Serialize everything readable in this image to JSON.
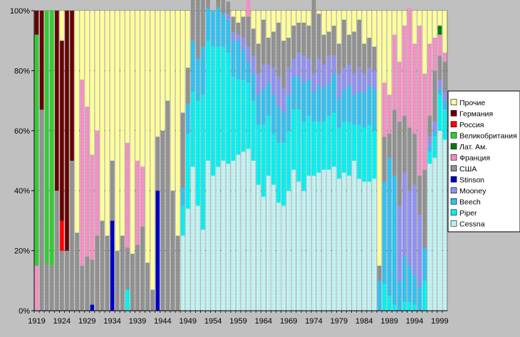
{
  "chart_data": {
    "type": "bar",
    "stacked": "percent",
    "title": "",
    "xlabel": "",
    "ylabel": "",
    "ylim": [
      0,
      100
    ],
    "y_ticks": [
      "0%",
      "20%",
      "40%",
      "60%",
      "80%",
      "100%"
    ],
    "x_tick_labels": [
      "1919",
      "1924",
      "1929",
      "1934",
      "1939",
      "1944",
      "1949",
      "1954",
      "1959",
      "1964",
      "1969",
      "1974",
      "1979",
      "1984",
      "1989",
      "1994",
      "1999"
    ],
    "grid": true,
    "legend_position": "right",
    "years": [
      1919,
      1920,
      1921,
      1922,
      1923,
      1924,
      1925,
      1926,
      1927,
      1928,
      1929,
      1930,
      1931,
      1932,
      1933,
      1934,
      1935,
      1936,
      1937,
      1938,
      1939,
      1940,
      1941,
      1942,
      1943,
      1944,
      1945,
      1946,
      1947,
      1948,
      1949,
      1950,
      1951,
      1952,
      1953,
      1954,
      1955,
      1956,
      1957,
      1958,
      1959,
      1960,
      1961,
      1962,
      1963,
      1964,
      1965,
      1966,
      1967,
      1968,
      1969,
      1970,
      1971,
      1972,
      1973,
      1974,
      1975,
      1976,
      1977,
      1978,
      1979,
      1980,
      1981,
      1982,
      1983,
      1984,
      1985,
      1986,
      1987,
      1988,
      1989,
      1990,
      1991,
      1992,
      1993,
      1994,
      1995,
      1996,
      1997,
      1998,
      1999,
      2000
    ],
    "series": [
      {
        "name": "Cessna",
        "color": "#ccffff",
        "pattern": "dots",
        "values": [
          0,
          0,
          0,
          0,
          0,
          0,
          0,
          0,
          0,
          0,
          0,
          0,
          0,
          0,
          0,
          0,
          0,
          0,
          0,
          0,
          0,
          0,
          0,
          0,
          0,
          0,
          0,
          0,
          0,
          25,
          34,
          48,
          35,
          27,
          50,
          45,
          48,
          50,
          49,
          50,
          52,
          53,
          54,
          50,
          42,
          38,
          45,
          42,
          36,
          35,
          40,
          47,
          43,
          40,
          45,
          45,
          46,
          47,
          47,
          48,
          44,
          46,
          45,
          50,
          44,
          43,
          43,
          44,
          0,
          0,
          0,
          0,
          0,
          0,
          0,
          0,
          0,
          0,
          49,
          51,
          60,
          57
        ]
      },
      {
        "name": "Piper",
        "color": "#00ffff",
        "pattern": "dots",
        "values": [
          0,
          0,
          0,
          0,
          0,
          0,
          0,
          0,
          0,
          0,
          0,
          0,
          0,
          0,
          0,
          0,
          0,
          0,
          7,
          0,
          0,
          0,
          0,
          0,
          0,
          0,
          0,
          0,
          0,
          10,
          25,
          25,
          35,
          45,
          40,
          43,
          40,
          38,
          37,
          28,
          25,
          24,
          22,
          20,
          20,
          24,
          20,
          17,
          20,
          21,
          20,
          20,
          24,
          23,
          20,
          18,
          17,
          16,
          18,
          18,
          17,
          17,
          18,
          12,
          18,
          18,
          19,
          16,
          0,
          9,
          5,
          2,
          0,
          3,
          3,
          2,
          0,
          10,
          4,
          7,
          12,
          10
        ]
      },
      {
        "name": "Beech",
        "color": "#33ccff",
        "pattern": "dots",
        "values": [
          0,
          0,
          0,
          0,
          0,
          0,
          0,
          0,
          0,
          0,
          0,
          0,
          0,
          0,
          0,
          0,
          0,
          0,
          0,
          0,
          0,
          0,
          0,
          0,
          0,
          0,
          0,
          0,
          0,
          6,
          10,
          17,
          14,
          16,
          11,
          12,
          13,
          11,
          11,
          12,
          13,
          10,
          7,
          9,
          10,
          12,
          11,
          13,
          12,
          10,
          12,
          11,
          11,
          13,
          12,
          10,
          12,
          11,
          11,
          13,
          10,
          11,
          12,
          10,
          11,
          12,
          13,
          14,
          10,
          34,
          46,
          43,
          10,
          15,
          12,
          10,
          8,
          11,
          2,
          2,
          2,
          3
        ]
      },
      {
        "name": "Mooney",
        "color": "#9999ff",
        "pattern": "dots",
        "values": [
          0,
          0,
          0,
          0,
          0,
          0,
          0,
          0,
          0,
          0,
          0,
          0,
          0,
          0,
          0,
          0,
          0,
          0,
          0,
          0,
          0,
          0,
          0,
          0,
          0,
          0,
          0,
          0,
          0,
          0,
          0,
          0,
          0,
          0,
          0,
          0,
          0,
          0,
          2,
          3,
          2,
          4,
          5,
          6,
          7,
          8,
          6,
          9,
          10,
          8,
          9,
          6,
          8,
          9,
          7,
          6,
          9,
          8,
          9,
          6,
          8,
          7,
          7,
          7,
          8,
          6,
          6,
          6,
          0,
          0,
          0,
          0,
          25,
          28,
          25,
          30,
          24,
          0,
          3,
          3,
          3,
          3
        ]
      },
      {
        "name": "Stinson",
        "color": "#0000cc",
        "pattern": "dots",
        "values": [
          0,
          0,
          0,
          0,
          0,
          0,
          0,
          0,
          0,
          0,
          0,
          2,
          0,
          0,
          0,
          30,
          0,
          0,
          0,
          0,
          0,
          0,
          0,
          0,
          40,
          0,
          0,
          0,
          0,
          0,
          0,
          0,
          0,
          0,
          0,
          0,
          0,
          0,
          0,
          0,
          0,
          0,
          0,
          0,
          0,
          0,
          0,
          0,
          0,
          0,
          0,
          0,
          0,
          0,
          0,
          0,
          0,
          0,
          0,
          0,
          0,
          0,
          0,
          0,
          0,
          0,
          0,
          0,
          0,
          0,
          0,
          0,
          0,
          0,
          0,
          0,
          0,
          0,
          0,
          0,
          0,
          0
        ]
      },
      {
        "name": "США",
        "color": "#999999",
        "pattern": "dots",
        "values": [
          0,
          67,
          16,
          15,
          40,
          20,
          20,
          50,
          26,
          15,
          18,
          15,
          25,
          30,
          25,
          20,
          20,
          25,
          14,
          19,
          22,
          28,
          16,
          7,
          18,
          60,
          70,
          40,
          25,
          25,
          12,
          20,
          40,
          40,
          30,
          0,
          5,
          5,
          4,
          5,
          4,
          7,
          10,
          9,
          10,
          15,
          9,
          12,
          18,
          16,
          10,
          11,
          10,
          11,
          11,
          25,
          15,
          10,
          8,
          10,
          10,
          16,
          10,
          14,
          16,
          10,
          10,
          8,
          5,
          15,
          8,
          22,
          28,
          19,
          21,
          17,
          13,
          26,
          7,
          17,
          8,
          10
        ]
      },
      {
        "name": "Франция",
        "color": "#ff99cc",
        "pattern": "dots",
        "values": [
          15,
          0,
          0,
          0,
          0,
          0,
          0,
          0,
          0,
          62,
          50,
          35,
          35,
          0,
          0,
          0,
          0,
          0,
          35,
          0,
          28,
          20,
          0,
          0,
          0,
          0,
          0,
          0,
          0,
          0,
          0,
          0,
          0,
          0,
          0,
          0,
          0,
          0,
          0,
          0,
          0,
          0,
          15,
          0,
          0,
          0,
          0,
          0,
          0,
          0,
          0,
          0,
          0,
          0,
          0,
          0,
          0,
          0,
          0,
          0,
          0,
          0,
          0,
          0,
          0,
          0,
          0,
          0,
          0,
          18,
          13,
          25,
          20,
          30,
          40,
          30,
          50,
          32,
          24,
          11,
          7,
          3
        ]
      },
      {
        "name": "Лат. Ам.",
        "color": "#008000",
        "pattern": "solid",
        "values": [
          0,
          0,
          0,
          0,
          0,
          0,
          0,
          0,
          0,
          0,
          0,
          0,
          0,
          0,
          0,
          0,
          0,
          0,
          0,
          0,
          0,
          0,
          0,
          0,
          0,
          0,
          0,
          0,
          0,
          0,
          0,
          0,
          0,
          0,
          0,
          0,
          0,
          0,
          0,
          0,
          0,
          0,
          0,
          0,
          0,
          0,
          0,
          0,
          0,
          0,
          0,
          0,
          0,
          0,
          0,
          0,
          0,
          0,
          0,
          0,
          0,
          0,
          0,
          0,
          0,
          0,
          0,
          0,
          0,
          0,
          0,
          0,
          0,
          0,
          0,
          0,
          0,
          0,
          0,
          0,
          3,
          0
        ]
      },
      {
        "name": "Великобритания",
        "color": "#33cc33",
        "pattern": "solid",
        "values": [
          77,
          0,
          84,
          85,
          0,
          0,
          0,
          0,
          0,
          0,
          0,
          0,
          0,
          0,
          0,
          0,
          0,
          0,
          0,
          0,
          0,
          0,
          0,
          0,
          0,
          0,
          0,
          0,
          0,
          0,
          0,
          0,
          0,
          0,
          0,
          0,
          0,
          0,
          0,
          0,
          0,
          0,
          0,
          0,
          0,
          0,
          0,
          0,
          0,
          0,
          0,
          0,
          0,
          0,
          0,
          0,
          0,
          0,
          0,
          0,
          0,
          0,
          0,
          0,
          0,
          0,
          0,
          0,
          0,
          0,
          0,
          0,
          0,
          0,
          0,
          0,
          0,
          0,
          0,
          0,
          0,
          0
        ]
      },
      {
        "name": "Россия",
        "color": "#ff0000",
        "pattern": "solid",
        "values": [
          0,
          0,
          0,
          0,
          0,
          10,
          0,
          0,
          0,
          0,
          0,
          0,
          0,
          0,
          0,
          0,
          0,
          0,
          0,
          0,
          0,
          0,
          0,
          0,
          0,
          0,
          0,
          0,
          0,
          0,
          0,
          0,
          0,
          0,
          0,
          0,
          0,
          0,
          0,
          0,
          0,
          0,
          0,
          0,
          0,
          0,
          0,
          0,
          0,
          0,
          0,
          0,
          0,
          0,
          0,
          0,
          0,
          0,
          0,
          0,
          0,
          0,
          0,
          0,
          0,
          0,
          0,
          0,
          0,
          0,
          0,
          0,
          0,
          0,
          0,
          0,
          0,
          0,
          0,
          0,
          0,
          0
        ]
      },
      {
        "name": "Германия",
        "color": "#660000",
        "pattern": "solid",
        "values": [
          8,
          33,
          0,
          0,
          60,
          60,
          80,
          50,
          0,
          0,
          0,
          0,
          0,
          0,
          0,
          0,
          0,
          0,
          0,
          0,
          0,
          0,
          0,
          0,
          0,
          0,
          0,
          0,
          0,
          0,
          0,
          0,
          0,
          0,
          0,
          0,
          0,
          0,
          0,
          0,
          0,
          0,
          0,
          0,
          0,
          0,
          0,
          0,
          0,
          0,
          0,
          0,
          0,
          0,
          0,
          0,
          0,
          0,
          0,
          0,
          0,
          0,
          0,
          0,
          0,
          0,
          0,
          0,
          0,
          0,
          0,
          0,
          0,
          0,
          0,
          0,
          0,
          0,
          0,
          0,
          0,
          0
        ]
      },
      {
        "name": "Прочие",
        "color": "#ffff99",
        "pattern": "solid",
        "values": [
          0,
          0,
          0,
          0,
          0,
          0,
          0,
          0,
          0,
          0,
          0,
          0,
          0,
          0,
          0,
          0,
          0,
          0,
          0,
          0,
          0,
          0,
          0,
          0,
          0,
          0,
          0,
          0,
          0,
          0,
          0,
          0,
          0,
          0,
          0,
          0,
          0,
          0,
          0,
          0,
          0,
          0,
          0,
          0,
          0,
          0,
          0,
          0,
          0,
          0,
          0,
          0,
          0,
          0,
          0,
          0,
          0,
          0,
          0,
          0,
          0,
          0,
          0,
          0,
          0,
          0,
          0,
          0,
          0,
          0,
          0,
          0,
          0,
          0,
          0,
          0,
          0,
          0,
          0,
          0,
          0,
          0
        ]
      }
    ]
  }
}
